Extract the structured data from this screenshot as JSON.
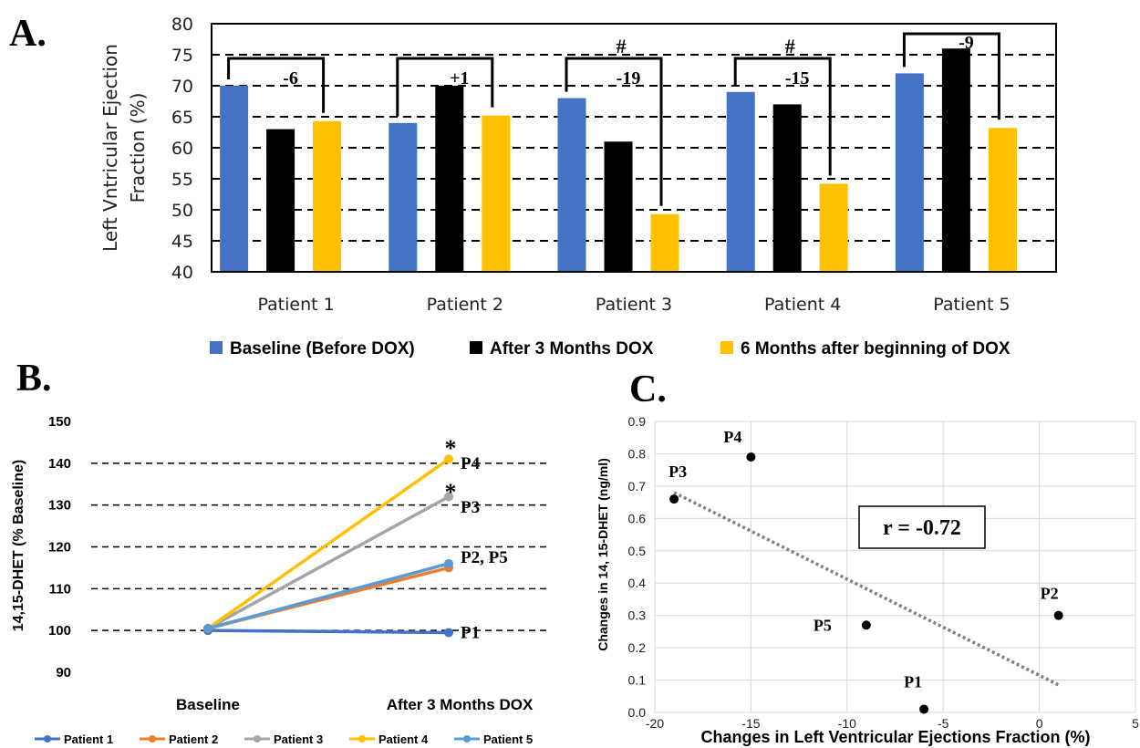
{
  "panels": {
    "a": "A.",
    "b": "B.",
    "c": "C."
  },
  "colors": {
    "baseline": "#4472C4",
    "three_months": "#000000",
    "six_months": "#FFC000",
    "patient1": "#4472C4",
    "patient2": "#ED7D31",
    "patient3": "#A5A5A5",
    "patient4": "#FFC000",
    "patient5": "#5B9BD5"
  },
  "chart_data": [
    {
      "type": "bar",
      "categories": [
        "Patient 1",
        "Patient 2",
        "Patient 3",
        "Patient 4",
        "Patient 5"
      ],
      "series": [
        {
          "name": "Baseline (Before DOX)",
          "values": [
            70,
            64,
            68,
            69,
            72
          ]
        },
        {
          "name": "After 3 Months DOX",
          "values": [
            63,
            70,
            61,
            67,
            76
          ]
        },
        {
          "name": "6 Months after beginning of DOX",
          "values": [
            64.3,
            65.2,
            49.3,
            54.2,
            63.2
          ]
        }
      ],
      "ylabel_lines": [
        "Left Vntricular Ejection",
        "Fraction (%)"
      ],
      "ylim": [
        40,
        80
      ],
      "yticks": [
        "40",
        "45",
        "50",
        "55",
        "60",
        "65",
        "70",
        "75",
        "80"
      ],
      "grid": "dashed horizontal",
      "legend": "bottom",
      "annotations": [
        {
          "category": "Patient 1",
          "change": "-6",
          "mark": ""
        },
        {
          "category": "Patient 2",
          "change": "+1",
          "mark": ""
        },
        {
          "category": "Patient 3",
          "change": "-19",
          "mark": "#"
        },
        {
          "category": "Patient 4",
          "change": "-15",
          "mark": "#"
        },
        {
          "category": "Patient 5",
          "change": "-9",
          "mark": ""
        }
      ]
    },
    {
      "type": "line",
      "x": [
        "Baseline",
        "After 3 Months DOX"
      ],
      "ylabel": "14,15-DHET (% Baseline)",
      "ylim": [
        90,
        150
      ],
      "yticks": [
        "90",
        "100",
        "110",
        "120",
        "130",
        "140",
        "150"
      ],
      "grid": "dashed horizontal",
      "legend": "bottom",
      "series": [
        {
          "name": "Patient 1",
          "values": [
            100,
            99.5
          ]
        },
        {
          "name": "Patient 2",
          "values": [
            100.5,
            115
          ]
        },
        {
          "name": "Patient 3",
          "values": [
            100.5,
            132
          ]
        },
        {
          "name": "Patient 4",
          "values": [
            100.5,
            141
          ]
        },
        {
          "name": "Patient 5",
          "values": [
            100.5,
            116
          ]
        }
      ],
      "end_labels": [
        {
          "text": "P4",
          "value": 140,
          "star": "*"
        },
        {
          "text": "P3",
          "value": 129.5,
          "star": "*"
        },
        {
          "text": "P2, P5",
          "value": 117.5,
          "star": ""
        },
        {
          "text": "P1",
          "value": 99.5,
          "star": ""
        }
      ]
    },
    {
      "type": "scatter",
      "xlabel": "Changes in Left Ventricular Ejections Fraction (%)",
      "ylabel": "Changes in 14, 15-DHET (ng/ml)",
      "xlim": [
        -20,
        5
      ],
      "ylim": [
        0,
        0.9
      ],
      "xticks": [
        "-20",
        "-15",
        "-10",
        "-5",
        "0",
        "5"
      ],
      "yticks": [
        "0.0",
        "0.1",
        "0.2",
        "0.3",
        "0.4",
        "0.5",
        "0.6",
        "0.7",
        "0.8",
        "0.9"
      ],
      "points": [
        {
          "label": "P1",
          "x": -6,
          "y": 0.01
        },
        {
          "label": "P2",
          "x": 1,
          "y": 0.3
        },
        {
          "label": "P3",
          "x": -19,
          "y": 0.66
        },
        {
          "label": "P4",
          "x": -15,
          "y": 0.79
        },
        {
          "label": "P5",
          "x": -9,
          "y": 0.27
        }
      ],
      "trendline": {
        "x": [
          -19,
          1
        ],
        "y": [
          0.68,
          0.085
        ]
      },
      "annotation": "r = -0.72"
    }
  ]
}
